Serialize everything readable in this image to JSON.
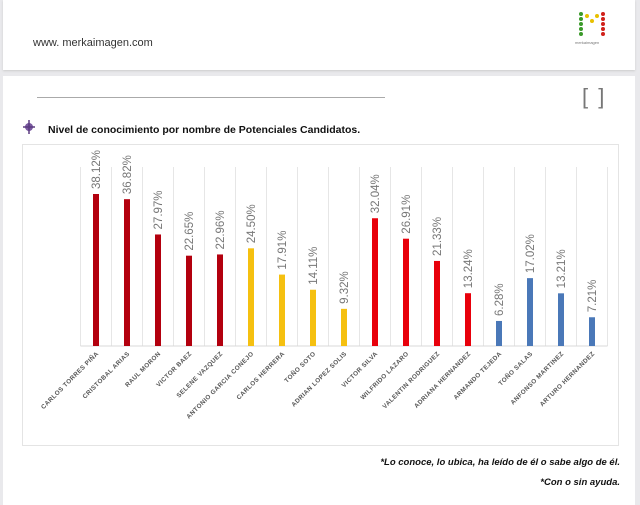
{
  "header": {
    "url": "www. merkaimagen.com",
    "logo_text": "merkaimagen"
  },
  "controls": {
    "brackets": "[ ]"
  },
  "chart_data": {
    "type": "bar",
    "title": "Nivel de conocimiento por nombre de Potenciales Candidatos.",
    "xlabel": "",
    "ylabel": "",
    "ylim": [
      0,
      45
    ],
    "grid": "vertical",
    "categories": [
      "CARLOS TORRES PIÑA",
      "CRISTOBAL ARIAS",
      "RAUL MORON",
      "VICTOR BAEZ",
      "SELENE VAZQUEZ",
      "ANTONIO GARCIA CONEJO",
      "CARLOS HERRERA",
      "TOÑO SOTO",
      "ADRIAN LOPEZ SOLIS",
      "VICTOR SILVA",
      "WILFRIDO LAZARO",
      "VALENTIN RODRIGUEZ",
      "ADRIANA HERNANDEZ",
      "ARMANDO TEJEDA",
      "TOÑO SALAS",
      "ANFONSO MARTINEZ",
      "ARTURO HERNANDEZ"
    ],
    "values": [
      38.12,
      36.82,
      27.97,
      22.65,
      22.96,
      24.5,
      17.91,
      14.11,
      9.32,
      32.04,
      26.91,
      21.33,
      13.24,
      6.28,
      17.02,
      13.21,
      7.21
    ],
    "labels": [
      "38.12%",
      "36.82%",
      "27.97%",
      "22.65%",
      "22.96%",
      "24.50%",
      "17.91%",
      "14.11%",
      "9.32%",
      "32.04%",
      "26.91%",
      "21.33%",
      "13.24%",
      "6.28%",
      "17.02%",
      "13.21%",
      "7.21%"
    ],
    "colors": [
      "#b3000e",
      "#b3000e",
      "#b3000e",
      "#b3000e",
      "#b3000e",
      "#f5c010",
      "#f5c010",
      "#f5c010",
      "#f5c010",
      "#e8000b",
      "#e8000b",
      "#e8000b",
      "#e8000b",
      "#4a78b8",
      "#4a78b8",
      "#4a78b8",
      "#4a78b8"
    ]
  },
  "notes": [
    "*Lo conoce, lo ubica, ha leído de él o sabe algo de él.",
    "*Con o sin ayuda."
  ]
}
